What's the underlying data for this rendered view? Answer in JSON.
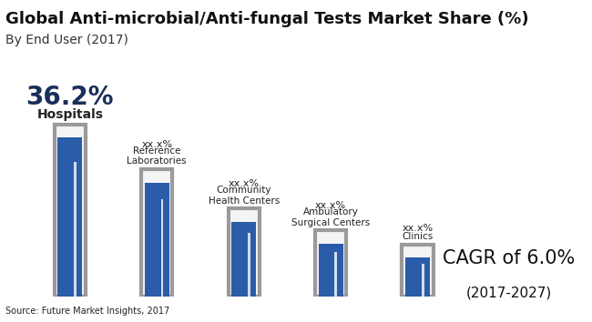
{
  "chart_data": {
    "type": "bar",
    "title": "Global Anti-microbial/Anti-fungal Tests Market Share (%)",
    "subtitle": "By End User (2017)",
    "categories": [
      "Hospitals",
      "Reference Laboratories",
      "Community Health Centers",
      "Ambulatory Surgical Centers",
      "Clinics"
    ],
    "values": [
      36.2,
      26.0,
      17.0,
      12.0,
      8.8
    ],
    "value_labels": [
      "36.2%",
      "xx.x%",
      "xx.x%",
      "xx.x%",
      "xx.x%"
    ],
    "data_labels": true,
    "color": "#2a5caa",
    "ylim": [
      0,
      50
    ],
    "tick_labels": false,
    "grid": false,
    "annotations": [
      "CAGR of 6.0%",
      "(2017-2027)",
      "Source: Future Market Insights, 2017"
    ]
  }
}
